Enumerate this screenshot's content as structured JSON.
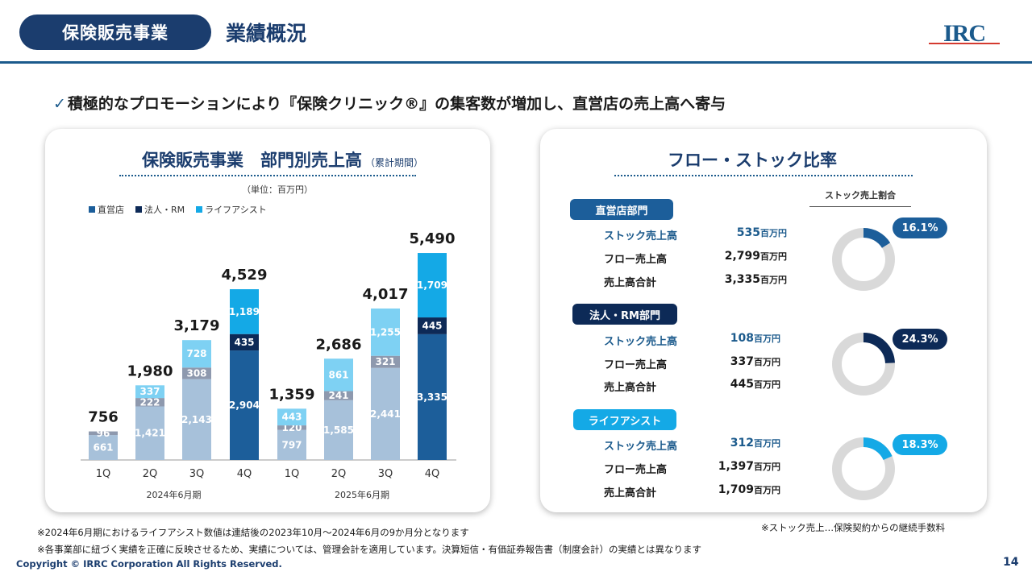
{
  "header": {
    "section_badge": "保険販売事業",
    "title": "業績概況",
    "logo_text": "IRC"
  },
  "headline": {
    "check": "✓",
    "text": "積極的なプロモーションにより『保険クリニック®』の集客数が増加し、直営店の売上高へ寄与"
  },
  "left_panel": {
    "title": "保険販売事業　部門別売上高",
    "subtitle": "（累計期間）",
    "unit_note": "（単位：百万円）"
  },
  "chart_data": {
    "type": "bar",
    "stacked": true,
    "categories": [
      "1Q",
      "2Q",
      "3Q",
      "4Q",
      "1Q",
      "2Q",
      "3Q",
      "4Q"
    ],
    "groups": [
      {
        "label": "2024年6月期",
        "range": [
          0,
          3
        ]
      },
      {
        "label": "2025年6月期",
        "range": [
          4,
          7
        ]
      }
    ],
    "series": [
      {
        "name": "直営店",
        "values": [
          661,
          1421,
          2143,
          2904,
          797,
          1585,
          2441,
          3335
        ]
      },
      {
        "name": "法人・RM",
        "values": [
          96,
          222,
          308,
          435,
          120,
          241,
          321,
          445
        ]
      },
      {
        "name": "ライフアシスト",
        "values": [
          null,
          337,
          728,
          1189,
          443,
          861,
          1255,
          1709
        ]
      }
    ],
    "value_labels": [
      [
        "661",
        "1,421",
        "2,143",
        "2,904",
        "797",
        "1,585",
        "2,441",
        "3,335"
      ],
      [
        "96",
        "222",
        "308",
        "435",
        "120",
        "241",
        "321",
        "445"
      ],
      [
        "",
        "337",
        "728",
        "1,189",
        "443",
        "861",
        "1,255",
        "1,709"
      ]
    ],
    "totals": [
      756,
      1980,
      3179,
      4529,
      1359,
      2686,
      4017,
      5490
    ],
    "total_labels": [
      "756",
      "1,980",
      "3,179",
      "4,529",
      "1,359",
      "2,686",
      "4,017",
      "5,490"
    ],
    "ylim": [
      0,
      5490
    ],
    "legend_position": "top-left",
    "grid": false,
    "colors": {
      "q4_direct": "#1c5e9a",
      "q4_corporate": "#0d2a57",
      "q4_life": "#14a9e6",
      "direct": "#a7c1da",
      "corporate": "#8e99ae",
      "life": "#7ed1f3",
      "legend_direct": "#1c5e9a",
      "legend_corporate": "#0d2a57",
      "legend_life": "#14a9e6"
    }
  },
  "right_panel": {
    "title": "フロー・ストック比率",
    "stock_head": "ストック売上割合",
    "departments": [
      {
        "label": "直営店部門",
        "color": "#1c5e9a",
        "stock_label": "ストック売上高",
        "stock_value": "535",
        "stock_unit": "百万円",
        "flow_label": "フロー売上高",
        "flow_value": "2,799",
        "flow_unit": "百万円",
        "total_label": "売上高合計",
        "total_value": "3,335",
        "total_unit": "百万円",
        "pct_label": "16.1%",
        "pct": 0.161
      },
      {
        "label": "法人・RM部門",
        "color": "#0d2a57",
        "stock_label": "ストック売上高",
        "stock_value": "108",
        "stock_unit": "百万円",
        "flow_label": "フロー売上高",
        "flow_value": "337",
        "flow_unit": "百万円",
        "total_label": "売上高合計",
        "total_value": "445",
        "total_unit": "百万円",
        "pct_label": "24.3%",
        "pct": 0.243
      },
      {
        "label": "ライフアシスト",
        "color": "#14a9e6",
        "stock_label": "ストック売上高",
        "stock_value": "312",
        "stock_unit": "百万円",
        "flow_label": "フロー売上高",
        "flow_value": "1,397",
        "flow_unit": "百万円",
        "total_label": "売上高合計",
        "total_value": "1,709",
        "total_unit": "百万円",
        "pct_label": "18.3%",
        "pct": 0.183
      }
    ],
    "stock_note": "※ストック売上…保険契約からの継続手数料"
  },
  "footnotes": [
    "※2024年6月期におけるライフアシスト数値は連結後の2023年10月～2024年6月の9か月分となります",
    "※各事業部に紐づく実績を正確に反映させるため、実績については、管理会計を適用しています。決算短信・有価証券報告書（制度会計）の実績とは異なります"
  ],
  "footer": {
    "copyright": "Copyright © IRRC Corporation All Rights Reserved.",
    "page_number": "14"
  }
}
